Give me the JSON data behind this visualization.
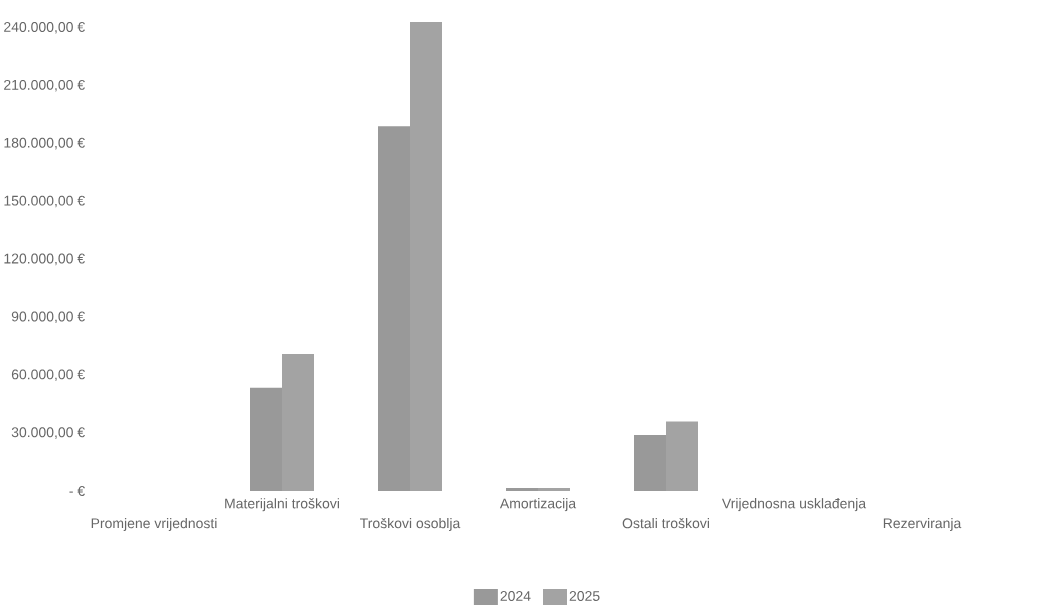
{
  "chart_data": {
    "type": "bar",
    "categories": [
      "Promjene vrijednosti",
      "Materijalni troškovi",
      "Troškovi osoblja",
      "Amortizacija",
      "Ostali troškovi",
      "Vrijednosna usklađenja",
      "Rezerviranja"
    ],
    "series": [
      {
        "name": "2024",
        "color": "#999999",
        "values": [
          0,
          53500,
          189000,
          1500,
          29000,
          0,
          0
        ]
      },
      {
        "name": "2025",
        "color": "#a3a3a3",
        "values": [
          0,
          71000,
          243000,
          1500,
          36000,
          0,
          0
        ]
      }
    ],
    "yticks": [
      {
        "value": 0,
        "label": "- €"
      },
      {
        "value": 30000,
        "label": "30.000,00 €"
      },
      {
        "value": 60000,
        "label": "60.000,00 €"
      },
      {
        "value": 90000,
        "label": "90.000,00 €"
      },
      {
        "value": 120000,
        "label": "120.000,00 €"
      },
      {
        "value": 150000,
        "label": "150.000,00 €"
      },
      {
        "value": 180000,
        "label": "180.000,00 €"
      },
      {
        "value": 210000,
        "label": "210.000,00 €"
      },
      {
        "value": 240000,
        "label": "240.000,00 €"
      }
    ],
    "ylim": [
      0,
      243000
    ],
    "grid": false,
    "legend": "bottom"
  }
}
